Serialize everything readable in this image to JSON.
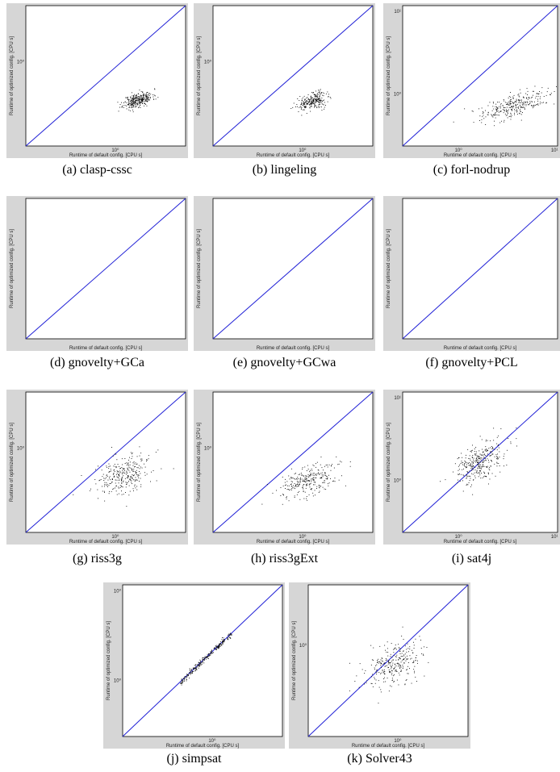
{
  "common": {
    "xlabel": "Runtime of default config. [CPU s]",
    "ylabel": "Runtime of optimized config. [CPU s]",
    "diag_color": "#1f1fd6",
    "frame_bg": "#d6d6d6"
  },
  "charts": [
    {
      "caption": "(a)  clasp-cssc",
      "chart_data": {
        "type": "scatter",
        "xlabel": "Runtime of default config. [CPU s]",
        "ylabel": "Runtime of optimized config. [CPU s]",
        "x_ticks": [
          "10<sup>0</sup>"
        ],
        "y_ticks": [
          "10<sup>0</sup>"
        ],
        "center": [
          0.7,
          0.33
        ],
        "spread": [
          0.045,
          0.025
        ],
        "count": 320,
        "seed": 11
      }
    },
    {
      "caption": "(b)  lingeling",
      "chart_data": {
        "type": "scatter",
        "xlabel": "Runtime of default config. [CPU s]",
        "ylabel": "Runtime of optimized config. [CPU s]",
        "x_ticks": [
          "10<sup>0</sup>"
        ],
        "y_ticks": [
          "10<sup>0</sup>"
        ],
        "center": [
          0.62,
          0.32
        ],
        "spread": [
          0.045,
          0.028
        ],
        "count": 260,
        "seed": 22
      }
    },
    {
      "caption": "(c)  forl-nodrup",
      "chart_data": {
        "type": "scatter",
        "xlabel": "Runtime of default config. [CPU s]",
        "ylabel": "Runtime of optimized config. [CPU s]",
        "x_ticks": [
          "10<sup>0</sup>",
          "10<sup>1</sup>"
        ],
        "y_ticks": [
          "10<sup>0</sup>",
          "10<sup>1</sup>"
        ],
        "center": [
          0.72,
          0.29
        ],
        "spread": [
          0.11,
          0.038
        ],
        "count": 300,
        "seed": 33
      }
    },
    {
      "caption": "(d)  gnovelty+GCa",
      "chart_data": {
        "type": "scatter",
        "xlabel": "Runtime of default config. [CPU s]",
        "ylabel": "Runtime of optimized config. [CPU s]",
        "x_ticks": [],
        "y_ticks": [],
        "center": [
          0.5,
          0.5
        ],
        "spread": [
          0,
          0
        ],
        "count": 0,
        "seed": 44
      }
    },
    {
      "caption": "(e)  gnovelty+GCwa",
      "chart_data": {
        "type": "scatter",
        "xlabel": "Runtime of default config. [CPU s]",
        "ylabel": "Runtime of optimized config. [CPU s]",
        "x_ticks": [],
        "y_ticks": [],
        "center": [
          0.5,
          0.5
        ],
        "spread": [
          0,
          0
        ],
        "count": 0,
        "seed": 55
      }
    },
    {
      "caption": "(f)  gnovelty+PCL",
      "chart_data": {
        "type": "scatter",
        "xlabel": "Runtime of default config. [CPU s]",
        "ylabel": "Runtime of optimized config. [CPU s]",
        "x_ticks": [],
        "y_ticks": [],
        "center": [
          0.5,
          0.5
        ],
        "spread": [
          0,
          0
        ],
        "count": 0,
        "seed": 66
      }
    },
    {
      "caption": "(g)  riss3g",
      "chart_data": {
        "type": "scatter",
        "xlabel": "Runtime of default config. [CPU s]",
        "ylabel": "Runtime of optimized config. [CPU s]",
        "x_ticks": [
          "10<sup>0</sup>"
        ],
        "y_ticks": [
          "10<sup>0</sup>"
        ],
        "center": [
          0.61,
          0.41
        ],
        "spread": [
          0.09,
          0.07
        ],
        "count": 300,
        "seed": 77
      }
    },
    {
      "caption": "(h)  riss3gExt",
      "chart_data": {
        "type": "scatter",
        "xlabel": "Runtime of default config. [CPU s]",
        "ylabel": "Runtime of optimized config. [CPU s]",
        "x_ticks": [
          "10<sup>0</sup>"
        ],
        "y_ticks": [
          "10<sup>0</sup>"
        ],
        "center": [
          0.6,
          0.37
        ],
        "spread": [
          0.09,
          0.055
        ],
        "count": 280,
        "seed": 88
      }
    },
    {
      "caption": "(i)  sat4j",
      "chart_data": {
        "type": "scatter",
        "xlabel": "Runtime of default config. [CPU s]",
        "ylabel": "Runtime of optimized config. [CPU s]",
        "x_ticks": [
          "10<sup>0</sup>",
          "10<sup>1</sup>"
        ],
        "y_ticks": [
          "10<sup>0</sup>",
          "10<sup>1</sup>"
        ],
        "center": [
          0.5,
          0.5
        ],
        "spread": [
          0.08,
          0.07
        ],
        "count": 320,
        "seed": 99
      }
    },
    {
      "caption": "(j)  simpsat",
      "chart_data": {
        "type": "scatter",
        "xlabel": "Runtime of default config. [CPU s]",
        "ylabel": "Runtime of optimized config. [CPU s]",
        "x_ticks": [
          "10<sup>0</sup>"
        ],
        "y_ticks": [
          "10<sup>0</sup>",
          "10<sup>0</sup>"
        ],
        "center": [
          0.52,
          0.52
        ],
        "spread": [
          0.1,
          0.01
        ],
        "count": 260,
        "seed": 111,
        "diag": true
      }
    },
    {
      "caption": "(k)  Solver43",
      "chart_data": {
        "type": "scatter",
        "xlabel": "Runtime of default config. [CPU s]",
        "ylabel": "Runtime of optimized config. [CPU s]",
        "x_ticks": [
          "10<sup>0</sup>"
        ],
        "y_ticks": [
          "10<sup>0</sup>"
        ],
        "center": [
          0.53,
          0.47
        ],
        "spread": [
          0.09,
          0.07
        ],
        "count": 280,
        "seed": 122
      }
    }
  ]
}
